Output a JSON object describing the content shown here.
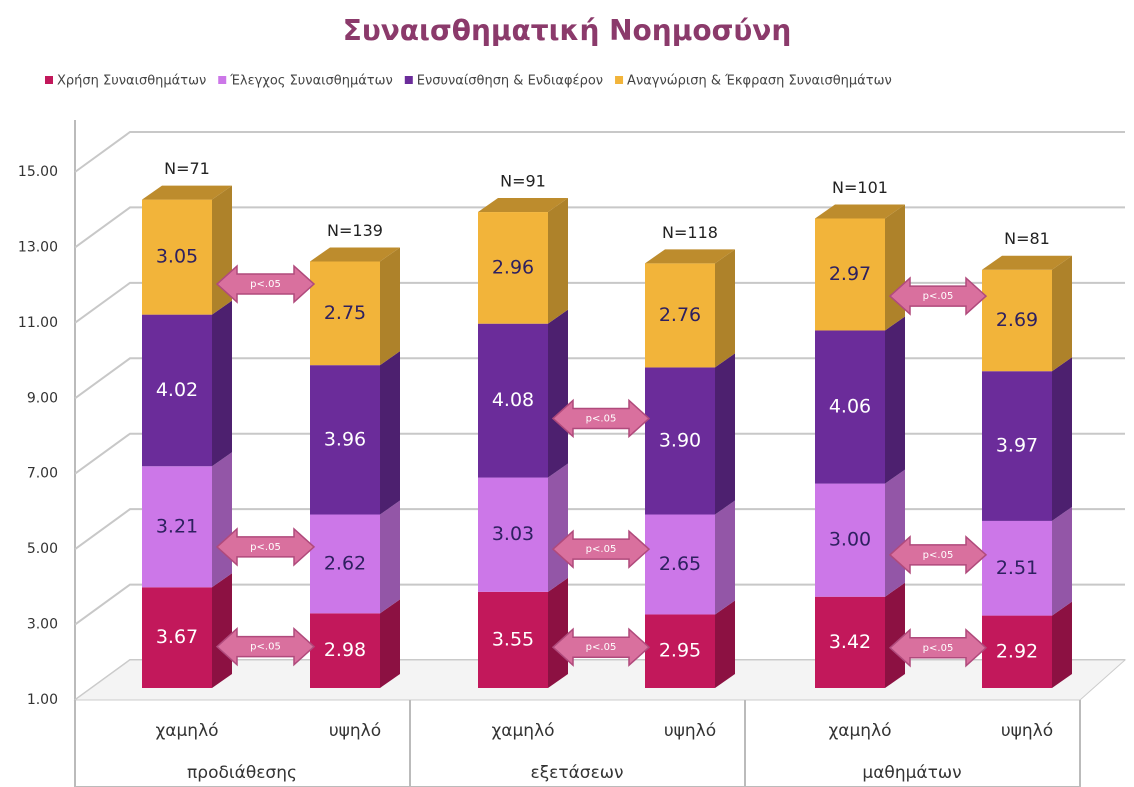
{
  "chart_data": {
    "type": "bar",
    "stacked": true,
    "title": "Συναισθηματική Νοημοσύνη",
    "categories": [
      "χαμηλό",
      "υψηλό",
      "χαμηλό",
      "υψηλό",
      "χαμηλό",
      "υψηλό"
    ],
    "groups": [
      "προδιάθεσης",
      "εξετάσεων",
      "μαθημάτων"
    ],
    "n_labels": [
      "N=71",
      "N=139",
      "N=91",
      "N=118",
      "N=101",
      "N=81"
    ],
    "series": [
      {
        "name": "Χρήση Συναισθημάτων",
        "color": "#c2185b",
        "values": [
          3.67,
          2.98,
          3.55,
          2.95,
          3.42,
          2.92
        ],
        "value_labels": [
          "3.67",
          "2.98",
          "3.55",
          "2.95",
          "3.42",
          "2.92"
        ]
      },
      {
        "name": "Έλεγχος Συναισθημάτων",
        "color": "#cc77e8",
        "values": [
          3.21,
          2.62,
          3.03,
          2.65,
          3.0,
          2.51
        ],
        "value_labels": [
          "3.21",
          "2.62",
          "3.03",
          "2.65",
          "3.00",
          "2.51"
        ]
      },
      {
        "name": "Ενσυναίσθηση & Ενδιαφέρον",
        "color": "#6b2c9a",
        "values": [
          4.02,
          3.96,
          4.08,
          3.9,
          4.06,
          3.97
        ],
        "value_labels": [
          "4.02",
          "3.96",
          "4.08",
          "3.90",
          "4.06",
          "3.97"
        ]
      },
      {
        "name": "Αναγνώριση & Έκφραση Συναισθημάτων",
        "color": "#f2b43a",
        "values": [
          3.05,
          2.75,
          2.96,
          2.76,
          2.97,
          2.69
        ],
        "value_labels": [
          "3.05",
          "2.75",
          "2.96",
          "2.76",
          "2.97",
          "2.69"
        ]
      }
    ],
    "ylim": [
      1,
      15
    ],
    "yticks": [
      {
        "value": 1,
        "label": "1.00"
      },
      {
        "value": 3,
        "label": "3.00"
      },
      {
        "value": 5,
        "label": "5.00"
      },
      {
        "value": 7,
        "label": "7.00"
      },
      {
        "value": 9,
        "label": "9.00"
      },
      {
        "value": 11,
        "label": "11.00"
      },
      {
        "value": 13,
        "label": "13.00"
      },
      {
        "value": 15,
        "label": "15.00"
      }
    ],
    "grid": true,
    "legend": "top",
    "annotations": [
      {
        "text": "p<.05",
        "group": "προδιάθεσης",
        "series": "Αναγνώριση & Έκφραση Συναισθημάτων"
      },
      {
        "text": "p<.05",
        "group": "προδιάθεσης",
        "series": "Έλεγχος Συναισθημάτων"
      },
      {
        "text": "p<.05",
        "group": "προδιάθεσης",
        "series": "Χρήση Συναισθημάτων"
      },
      {
        "text": "p<.05",
        "group": "εξετάσεων",
        "series": "Ενσυναίσθηση & Ενδιαφέρον"
      },
      {
        "text": "p<.05",
        "group": "εξετάσεων",
        "series": "Έλεγχος Συναισθημάτων"
      },
      {
        "text": "p<.05",
        "group": "εξετάσεων",
        "series": "Χρήση Συναισθημάτων"
      },
      {
        "text": "p<.05",
        "group": "μαθημάτων",
        "series": "Αναγνώριση & Έκφραση Συναισθημάτων"
      },
      {
        "text": "p<.05",
        "group": "μαθημάτων",
        "series": "Έλεγχος Συναισθημάτων"
      },
      {
        "text": "p<.05",
        "group": "μαθημάτων",
        "series": "Χρήση Συναισθημάτων"
      }
    ]
  }
}
